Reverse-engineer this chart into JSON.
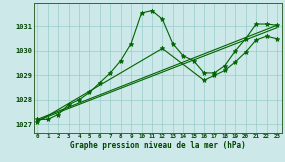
{
  "title": "Graphe pression niveau de la mer (hPa)",
  "bg_color": "#cce8e8",
  "grid_color": "#99cccc",
  "line_color": "#006400",
  "marker_color": "#006400",
  "series": [
    {
      "x": [
        0,
        1,
        2,
        3,
        4,
        5,
        6,
        7,
        8,
        9,
        10,
        11,
        12,
        13,
        14,
        15,
        16,
        17,
        18,
        19,
        20,
        21,
        22,
        23
      ],
      "y": [
        1027.2,
        1027.2,
        1027.4,
        1027.8,
        1028.0,
        1028.3,
        1028.7,
        1029.1,
        1029.6,
        1030.3,
        1031.55,
        1031.65,
        1031.3,
        1030.3,
        1029.8,
        1029.6,
        1029.1,
        1029.1,
        1029.4,
        1030.0,
        1030.5,
        1031.1,
        1031.1,
        1031.05
      ],
      "marker": true
    },
    {
      "x": [
        0,
        23
      ],
      "y": [
        1027.2,
        1031.05
      ],
      "marker": false
    },
    {
      "x": [
        0,
        23
      ],
      "y": [
        1027.15,
        1030.95
      ],
      "marker": false
    },
    {
      "x": [
        0,
        12,
        16,
        17,
        18,
        19,
        20,
        21,
        22,
        23
      ],
      "y": [
        1027.1,
        1030.1,
        1028.8,
        1029.0,
        1029.2,
        1029.55,
        1029.95,
        1030.45,
        1030.6,
        1030.5
      ],
      "marker": true
    }
  ],
  "yticks": [
    1027,
    1028,
    1029,
    1030,
    1031
  ],
  "xticks": [
    0,
    1,
    2,
    3,
    4,
    5,
    6,
    7,
    8,
    9,
    10,
    11,
    12,
    13,
    14,
    15,
    16,
    17,
    18,
    19,
    20,
    21,
    22,
    23
  ],
  "ylim": [
    1026.65,
    1031.95
  ],
  "xlim": [
    -0.3,
    23.5
  ]
}
